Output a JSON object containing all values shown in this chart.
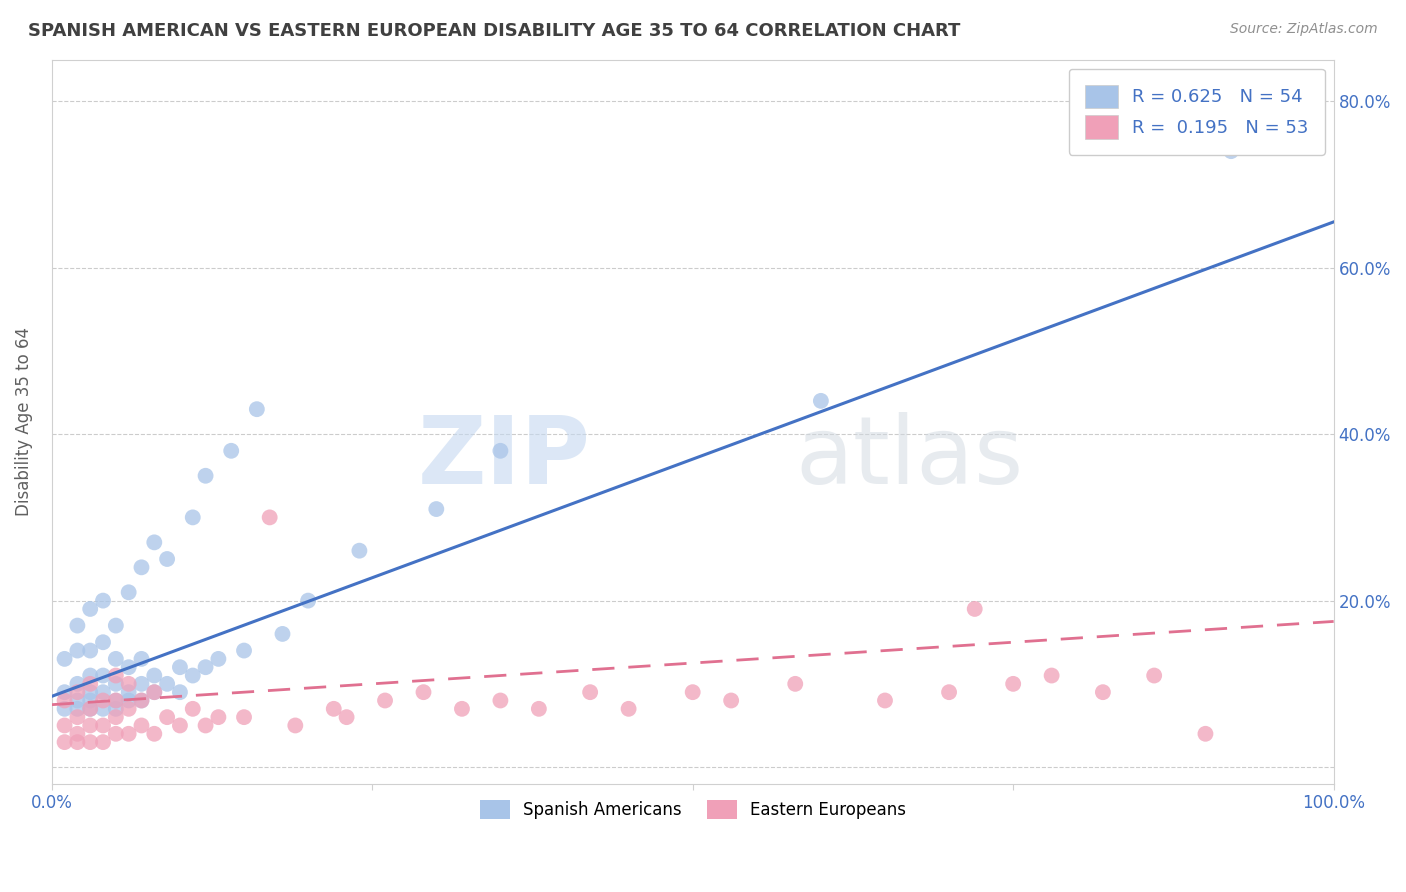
{
  "title": "SPANISH AMERICAN VS EASTERN EUROPEAN DISABILITY AGE 35 TO 64 CORRELATION CHART",
  "source": "Source: ZipAtlas.com",
  "ylabel": "Disability Age 35 to 64",
  "watermark_zip": "ZIP",
  "watermark_atlas": "atlas",
  "xlim": [
    0.0,
    1.0
  ],
  "ylim": [
    -0.02,
    0.85
  ],
  "xtick_left": 0.0,
  "xtick_right": 1.0,
  "xticklabel_left": "0.0%",
  "xticklabel_right": "100.0%",
  "yticks_left": [
    0.0,
    0.2,
    0.4,
    0.6,
    0.8
  ],
  "yticklabels_left": [
    "",
    "",
    "",
    "",
    ""
  ],
  "yticks_right": [
    0.2,
    0.4,
    0.6,
    0.8
  ],
  "yticklabels_right": [
    "20.0%",
    "40.0%",
    "60.0%",
    "80.0%"
  ],
  "blue_R": 0.625,
  "blue_N": 54,
  "pink_R": 0.195,
  "pink_N": 53,
  "blue_color": "#a8c4e8",
  "pink_color": "#f0a0b8",
  "blue_line_color": "#4472c4",
  "pink_line_color": "#e07090",
  "legend_label_blue": "Spanish Americans",
  "legend_label_pink": "Eastern Europeans",
  "blue_line_x0": 0.0,
  "blue_line_y0": 0.085,
  "blue_line_x1": 1.0,
  "blue_line_y1": 0.655,
  "pink_line_x0": 0.0,
  "pink_line_y0": 0.075,
  "pink_line_x1": 1.0,
  "pink_line_y1": 0.175,
  "blue_scatter_x": [
    0.01,
    0.01,
    0.01,
    0.02,
    0.02,
    0.02,
    0.02,
    0.02,
    0.03,
    0.03,
    0.03,
    0.03,
    0.03,
    0.03,
    0.04,
    0.04,
    0.04,
    0.04,
    0.04,
    0.05,
    0.05,
    0.05,
    0.05,
    0.05,
    0.06,
    0.06,
    0.06,
    0.06,
    0.07,
    0.07,
    0.07,
    0.07,
    0.08,
    0.08,
    0.08,
    0.09,
    0.09,
    0.1,
    0.1,
    0.11,
    0.11,
    0.12,
    0.12,
    0.13,
    0.14,
    0.15,
    0.16,
    0.18,
    0.2,
    0.24,
    0.3,
    0.35,
    0.6,
    0.92
  ],
  "blue_scatter_y": [
    0.07,
    0.09,
    0.13,
    0.07,
    0.08,
    0.1,
    0.14,
    0.17,
    0.07,
    0.08,
    0.09,
    0.11,
    0.14,
    0.19,
    0.07,
    0.09,
    0.11,
    0.15,
    0.2,
    0.07,
    0.08,
    0.1,
    0.13,
    0.17,
    0.08,
    0.09,
    0.12,
    0.21,
    0.08,
    0.1,
    0.13,
    0.24,
    0.09,
    0.11,
    0.27,
    0.1,
    0.25,
    0.09,
    0.12,
    0.11,
    0.3,
    0.12,
    0.35,
    0.13,
    0.38,
    0.14,
    0.43,
    0.16,
    0.2,
    0.26,
    0.31,
    0.38,
    0.44,
    0.74
  ],
  "pink_scatter_x": [
    0.01,
    0.01,
    0.01,
    0.02,
    0.02,
    0.02,
    0.02,
    0.03,
    0.03,
    0.03,
    0.03,
    0.04,
    0.04,
    0.04,
    0.05,
    0.05,
    0.05,
    0.05,
    0.06,
    0.06,
    0.06,
    0.07,
    0.07,
    0.08,
    0.08,
    0.09,
    0.1,
    0.11,
    0.12,
    0.13,
    0.15,
    0.17,
    0.19,
    0.22,
    0.23,
    0.26,
    0.29,
    0.32,
    0.35,
    0.38,
    0.42,
    0.45,
    0.5,
    0.53,
    0.58,
    0.65,
    0.7,
    0.72,
    0.75,
    0.78,
    0.82,
    0.86,
    0.9
  ],
  "pink_scatter_y": [
    0.03,
    0.05,
    0.08,
    0.03,
    0.04,
    0.06,
    0.09,
    0.03,
    0.05,
    0.07,
    0.1,
    0.03,
    0.05,
    0.08,
    0.04,
    0.06,
    0.08,
    0.11,
    0.04,
    0.07,
    0.1,
    0.05,
    0.08,
    0.04,
    0.09,
    0.06,
    0.05,
    0.07,
    0.05,
    0.06,
    0.06,
    0.3,
    0.05,
    0.07,
    0.06,
    0.08,
    0.09,
    0.07,
    0.08,
    0.07,
    0.09,
    0.07,
    0.09,
    0.08,
    0.1,
    0.08,
    0.09,
    0.19,
    0.1,
    0.11,
    0.09,
    0.11,
    0.04
  ],
  "grid_color": "#cccccc",
  "background_color": "#ffffff",
  "title_color": "#404040",
  "axis_tick_color": "#4472c4",
  "source_color": "#909090",
  "legend_text_color": "#4472c4"
}
